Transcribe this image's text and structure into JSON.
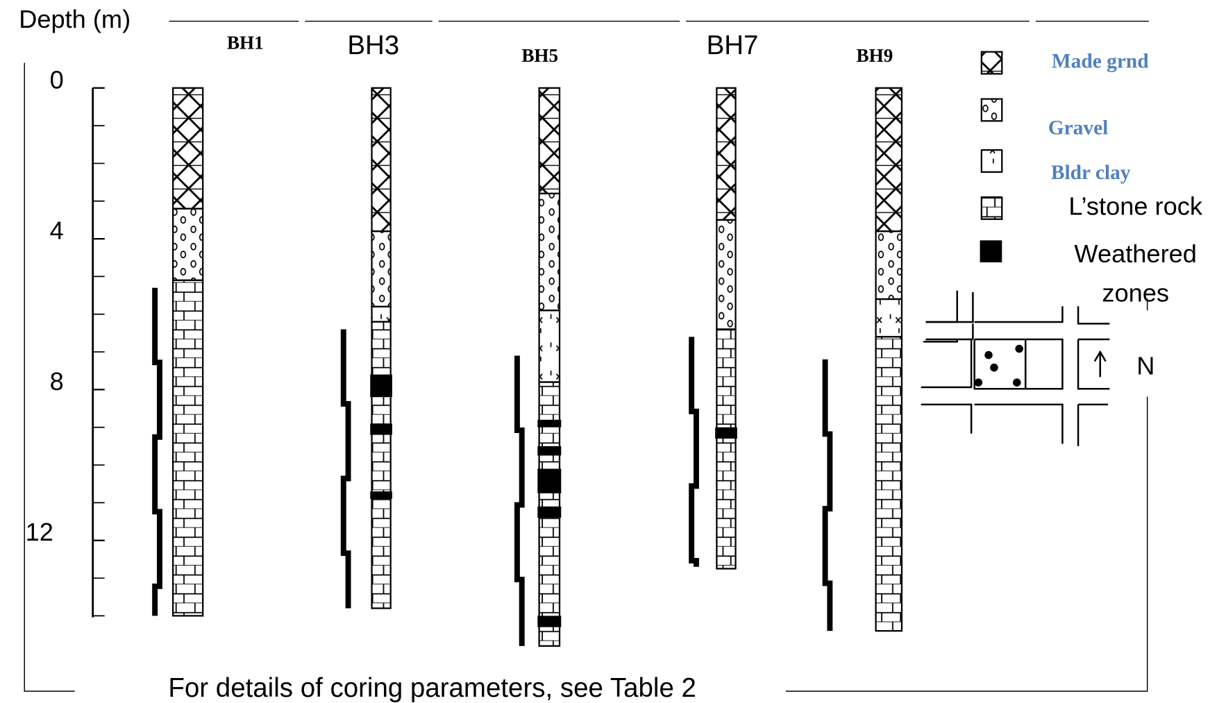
{
  "depth_axis": {
    "label": "Depth (m)",
    "ticks": [
      0,
      4,
      8,
      12
    ]
  },
  "boreholes": [
    {
      "name": "BH1",
      "core": [
        5.3,
        14.0
      ],
      "layers": [
        {
          "key": 0,
          "top": 0,
          "bottom": 3.2
        },
        {
          "key": 1,
          "top": 3.2,
          "bottom": 5.1
        },
        {
          "key": 3,
          "top": 5.1,
          "bottom": 14.0
        }
      ],
      "weathered": []
    },
    {
      "name": "BH3",
      "core": [
        6.4,
        13.8
      ],
      "layers": [
        {
          "key": 0,
          "top": 0,
          "bottom": 3.8
        },
        {
          "key": 1,
          "top": 3.8,
          "bottom": 5.8
        },
        {
          "key": 2,
          "top": 5.8,
          "bottom": 6.2
        },
        {
          "key": 3,
          "top": 6.2,
          "bottom": 13.8
        }
      ],
      "weathered": [
        [
          7.6,
          8.2
        ],
        [
          8.9,
          9.2
        ],
        [
          10.7,
          10.9
        ]
      ]
    },
    {
      "name": "BH5",
      "core": [
        7.1,
        14.8
      ],
      "layers": [
        {
          "key": 0,
          "top": 0,
          "bottom": 2.8
        },
        {
          "key": 1,
          "top": 2.8,
          "bottom": 5.9
        },
        {
          "key": 2,
          "top": 5.9,
          "bottom": 7.8
        },
        {
          "key": 3,
          "top": 7.8,
          "bottom": 14.8
        }
      ],
      "weathered": [
        [
          8.8,
          9.0
        ],
        [
          9.5,
          9.75
        ],
        [
          10.1,
          10.75
        ],
        [
          11.1,
          11.4
        ],
        [
          14.0,
          14.3
        ]
      ]
    },
    {
      "name": "BH7",
      "core": [
        6.6,
        12.7
      ],
      "layers": [
        {
          "key": 0,
          "top": 0,
          "bottom": 3.5
        },
        {
          "key": 1,
          "top": 3.5,
          "bottom": 6.4
        },
        {
          "key": 3,
          "top": 6.4,
          "bottom": 12.75
        }
      ],
      "weathered": [
        [
          9.0,
          9.3
        ]
      ]
    },
    {
      "name": "BH9",
      "core": [
        7.2,
        14.4
      ],
      "layers": [
        {
          "key": 0,
          "top": 0,
          "bottom": 3.8
        },
        {
          "key": 1,
          "top": 3.8,
          "bottom": 5.6
        },
        {
          "key": 2,
          "top": 5.6,
          "bottom": 6.6
        },
        {
          "key": 3,
          "top": 6.6,
          "bottom": 14.4
        }
      ],
      "weathered": []
    }
  ],
  "legend": [
    {
      "label": "Made grnd"
    },
    {
      "label": "Gravel"
    },
    {
      "label": "Bldr clay"
    },
    {
      "label": "L’stone rock"
    },
    {
      "label": "Weathered zones"
    }
  ],
  "map": {
    "north_label": "N"
  },
  "note": "For details of coring parameters, see Table 2"
}
